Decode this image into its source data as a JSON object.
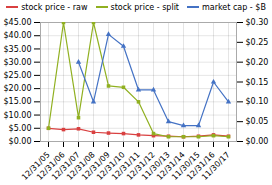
{
  "chart_data": {
    "type": "line",
    "categories": [
      "12/31/05",
      "12/31/06",
      "12/31/07",
      "12/31/08",
      "12/31/09",
      "12/31/10",
      "12/31/11",
      "12/31/12",
      "11/30/13",
      "12/31/14",
      "11/30/15",
      "12/31/16",
      "11/30/17"
    ],
    "series": [
      {
        "name": "stock price - raw",
        "color": "#d94040",
        "marker": "square",
        "values": [
          5.0,
          4.5,
          4.8,
          3.5,
          3.2,
          3.0,
          2.5,
          2.2,
          2.0,
          1.8,
          2.0,
          2.5,
          2.0
        ]
      },
      {
        "name": "stock price - split",
        "color": "#90b020",
        "marker": "square",
        "values": [
          5.0,
          45.0,
          9.0,
          45.0,
          21.0,
          20.5,
          15.0,
          3.0,
          1.8,
          1.8,
          1.8,
          2.2,
          1.8
        ]
      },
      {
        "name": "market cap - $B",
        "color": "#4472c4",
        "marker": "triangle",
        "axis": "y2",
        "values": [
          null,
          null,
          0.2,
          0.1,
          0.27,
          0.24,
          0.13,
          0.13,
          0.05,
          0.04,
          0.04,
          0.15,
          0.1
        ]
      }
    ],
    "ylim": [
      0,
      45
    ],
    "yticks": [
      {
        "value": 0,
        "label": "$0.00"
      },
      {
        "value": 5,
        "label": "$5.00"
      },
      {
        "value": 10,
        "label": "$10.00"
      },
      {
        "value": 15,
        "label": "$15.00"
      },
      {
        "value": 20,
        "label": "$20.00"
      },
      {
        "value": 25,
        "label": "$25.00"
      },
      {
        "value": 30,
        "label": "$30.00"
      },
      {
        "value": 35,
        "label": "$35.00"
      },
      {
        "value": 40,
        "label": "$40.00"
      },
      {
        "value": 45,
        "label": "$45.00"
      }
    ],
    "y2lim": [
      0,
      0.3
    ],
    "y2ticks": [
      {
        "value": 0.0,
        "label": "$0.00"
      },
      {
        "value": 0.05,
        "label": "$0.05"
      },
      {
        "value": 0.1,
        "label": "$0.10"
      },
      {
        "value": 0.15,
        "label": "$0.15"
      },
      {
        "value": 0.2,
        "label": "$0.20"
      },
      {
        "value": 0.25,
        "label": "$0.25"
      },
      {
        "value": 0.3,
        "label": "$0.30"
      }
    ],
    "grid": true,
    "legend": "top"
  }
}
